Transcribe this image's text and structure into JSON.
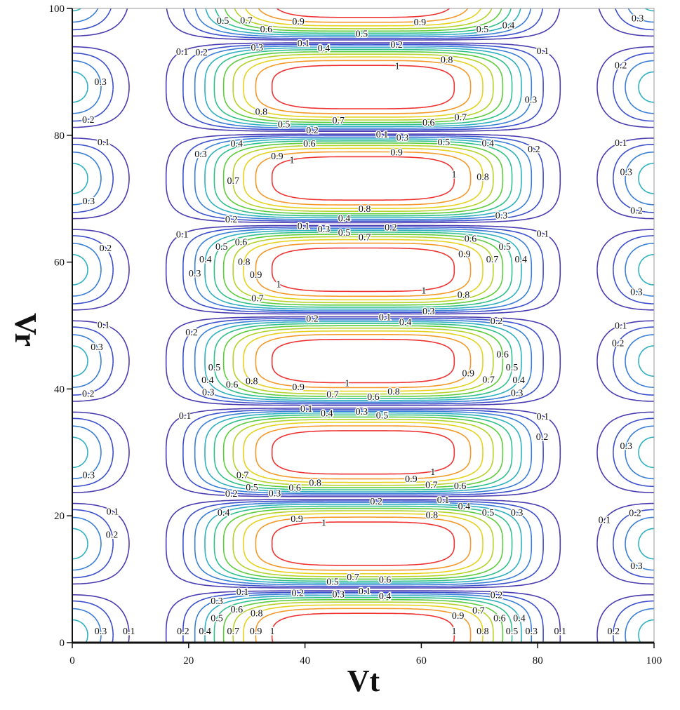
{
  "chart_data": {
    "type": "contour",
    "title": "",
    "xlabel": "Vt",
    "ylabel": "Vr",
    "xlim": [
      0,
      100
    ],
    "ylim": [
      0,
      100
    ],
    "xticks": [
      "0",
      "20",
      "40",
      "60",
      "80",
      "100"
    ],
    "yticks": [
      "0",
      "20",
      "40",
      "60",
      "80",
      "100"
    ],
    "levels": [
      0.1,
      0.2,
      0.3,
      0.4,
      0.5,
      0.6,
      0.7,
      0.8,
      0.9,
      1
    ],
    "level_labels": [
      "0.1",
      "0.2",
      "0.3",
      "0.4",
      "0.5",
      "0.6",
      "0.7",
      "0.8",
      "0.9",
      "1"
    ],
    "level_colors": [
      "#4a3cb0",
      "#3b4fcc",
      "#3a7fd6",
      "#2eb0c0",
      "#2fbf8a",
      "#5ccc3c",
      "#b4d22a",
      "#e6d21e",
      "#f3992a",
      "#ee3333"
    ],
    "peak_centers_vt": 50,
    "peak_centers_vr": [
      1.2,
      15.6,
      30,
      44.4,
      58.8,
      73.2,
      87.6,
      102
    ],
    "grid": false
  }
}
